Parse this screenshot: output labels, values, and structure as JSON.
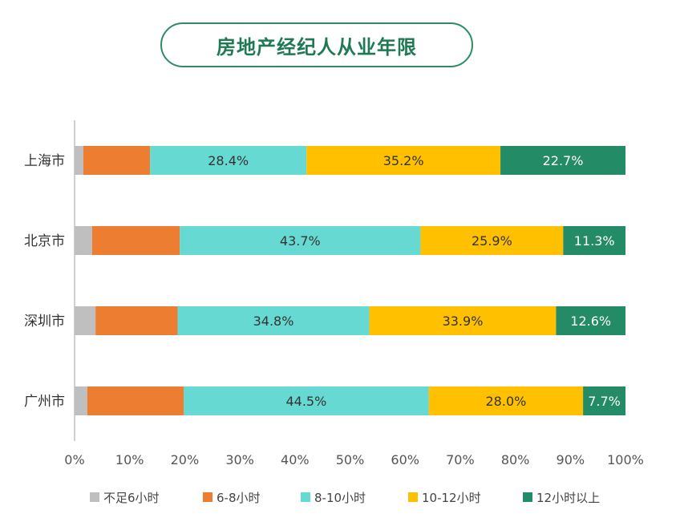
{
  "chart_data": {
    "type": "bar",
    "orientation": "horizontal",
    "stacked": true,
    "title": "房地产经纪人从业年限",
    "categories": [
      "上海市",
      "北京市",
      "深圳市",
      "广州市"
    ],
    "series": [
      {
        "name": "不足6小时",
        "color": "#bfbfbf",
        "values": [
          1.6,
          3.2,
          3.8,
          2.3
        ],
        "labels": [
          "",
          "",
          "",
          ""
        ],
        "label_color": "#333333"
      },
      {
        "name": "6-8小时",
        "color": "#ed7d31",
        "values": [
          12.1,
          15.9,
          14.9,
          17.5
        ],
        "labels": [
          "",
          "",
          "",
          ""
        ],
        "label_color": "#333333"
      },
      {
        "name": "8-10小时",
        "color": "#66d9d2",
        "values": [
          28.4,
          43.7,
          34.8,
          44.5
        ],
        "labels": [
          "28.4%",
          "43.7%",
          "34.8%",
          "44.5%"
        ],
        "label_color": "#333333"
      },
      {
        "name": "10-12小时",
        "color": "#ffc000",
        "values": [
          35.2,
          25.9,
          33.9,
          28.0
        ],
        "labels": [
          "35.2%",
          "25.9%",
          "33.9%",
          "28.0%"
        ],
        "label_color": "#333333"
      },
      {
        "name": "12小时以上",
        "color": "#238b65",
        "values": [
          22.7,
          11.3,
          12.6,
          7.7
        ],
        "labels": [
          "22.7%",
          "11.3%",
          "12.6%",
          "7.7%"
        ],
        "label_color": "#ffffff"
      }
    ],
    "xlim": [
      0,
      100
    ],
    "xticks": [
      "0%",
      "10%",
      "20%",
      "30%",
      "40%",
      "50%",
      "60%",
      "70%",
      "80%",
      "90%",
      "100%"
    ],
    "grid": false,
    "legend_position": "bottom"
  }
}
